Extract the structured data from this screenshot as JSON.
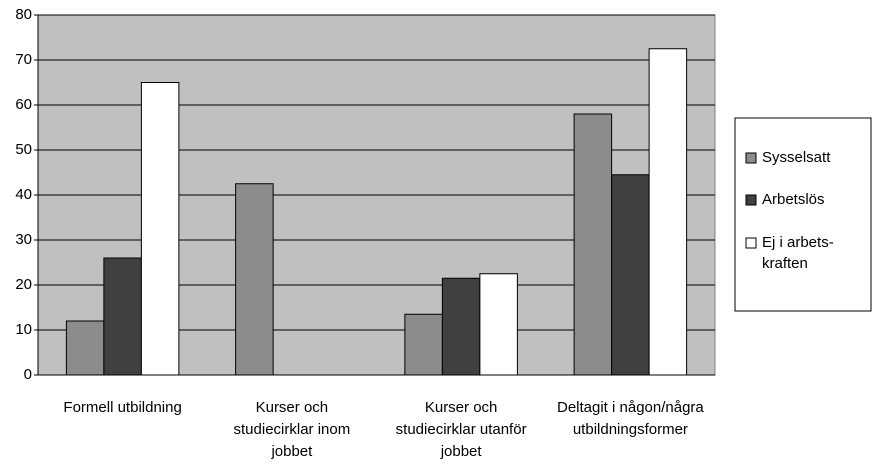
{
  "chart_data": {
    "type": "bar",
    "categories": [
      "Formell utbildning",
      "Kurser och studiecirklar inom jobbet",
      "Kurser och studiecirklar utanför jobbet",
      "Deltagit i någon/några utbildningsformer"
    ],
    "series": [
      {
        "name": "Sysselsatt",
        "color": "#8c8c8c",
        "values": [
          12,
          42.5,
          13.5,
          58
        ]
      },
      {
        "name": "Arbetslös",
        "color": "#404040",
        "values": [
          26,
          null,
          21.5,
          44.5
        ]
      },
      {
        "name": "Ej i arbets-kraften",
        "color": "#ffffff",
        "values": [
          65,
          null,
          22.5,
          72.5
        ]
      }
    ],
    "ylim": [
      0,
      80
    ],
    "yticks": [
      0,
      10,
      20,
      30,
      40,
      50,
      60,
      70,
      80
    ],
    "grid": true,
    "plot_background": "#c0c0c0",
    "legend": "right"
  }
}
